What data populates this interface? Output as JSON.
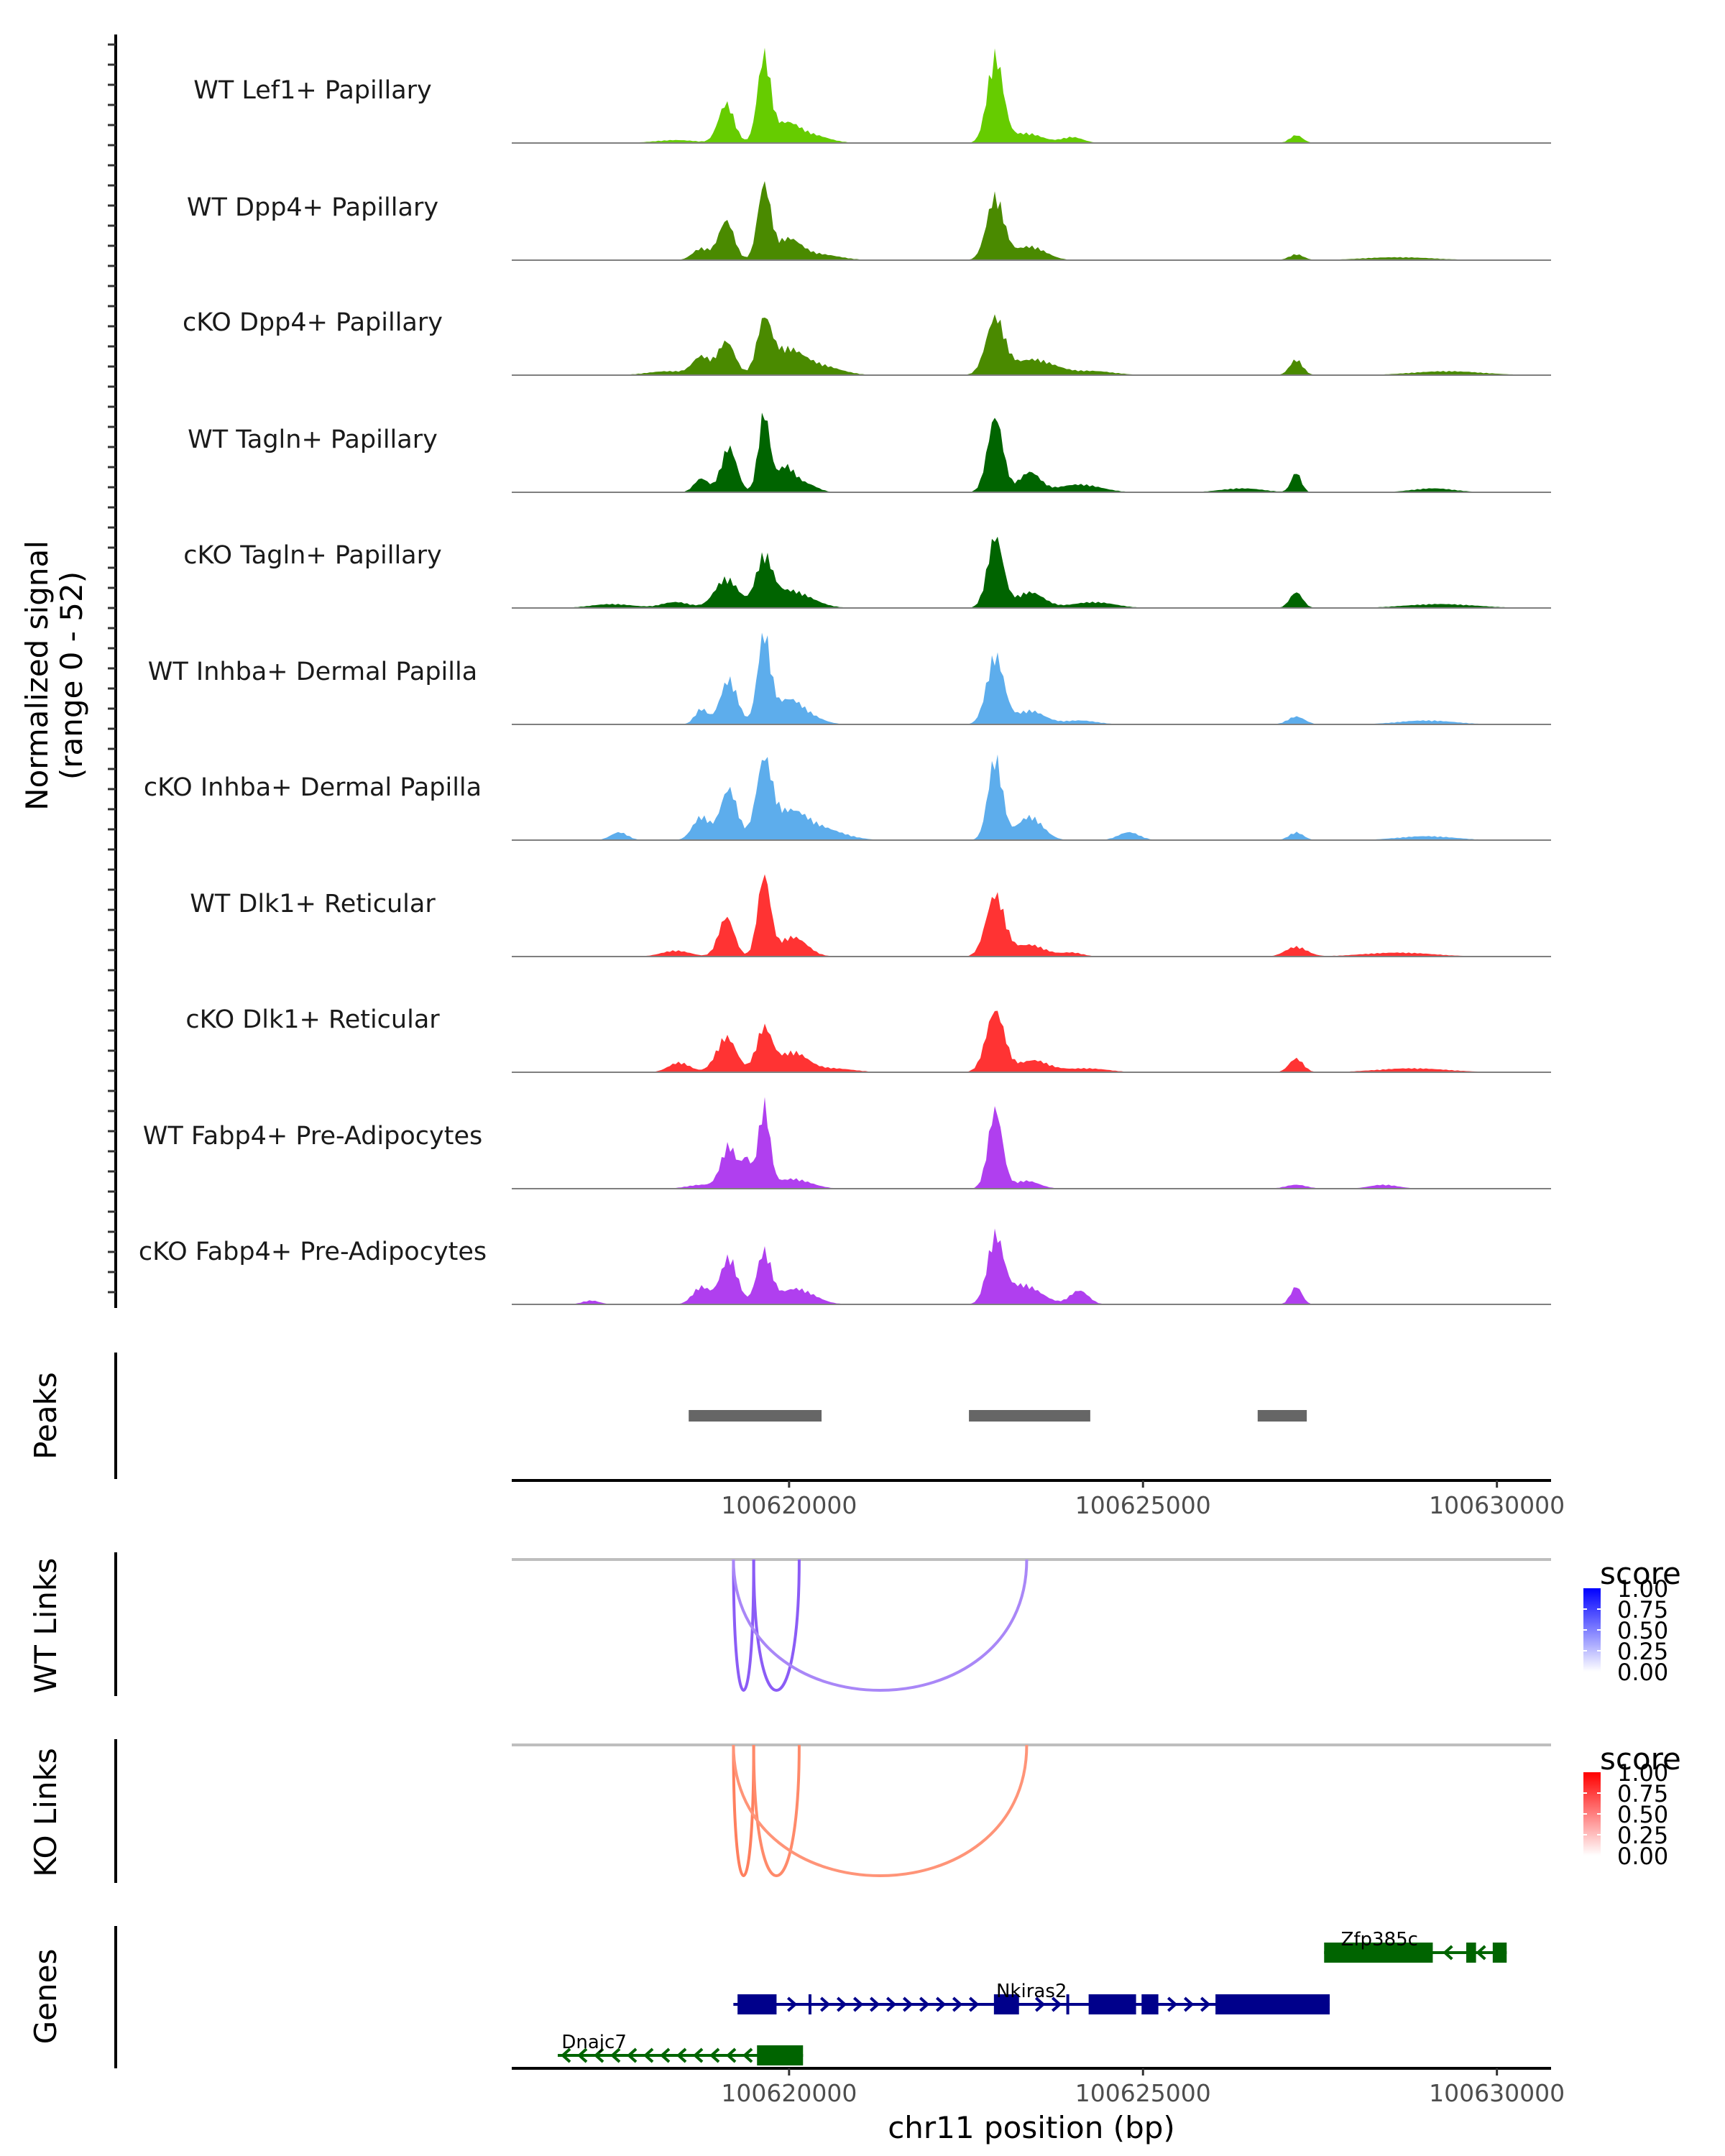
{
  "chart_data": {
    "type": "area",
    "title": "",
    "xlabel": "chr11 position (bp)",
    "ylabel": "Normalized signal\n(range 0 - 52)",
    "ylabel_lines": [
      "Normalized signal",
      "(range 0 - 52)"
    ],
    "chromosome": "chr11",
    "xlim": [
      100616082,
      100630765
    ],
    "ylim": [
      0,
      52
    ],
    "x_ticks": [
      100620000,
      100625000,
      100630000
    ],
    "x_tick_labels": [
      "100620000",
      "100625000",
      "100630000"
    ],
    "coverage_tracks": [
      {
        "name": "WT Lef1+ Papillary",
        "color": "#66CC00",
        "peaks": [
          [
            100619114,
            20,
            110
          ],
          [
            100619646,
            43,
            90
          ],
          [
            100619950,
            9,
            180
          ],
          [
            100620300,
            4,
            250
          ],
          [
            100622913,
            44,
            110
          ],
          [
            100623350,
            5,
            220
          ],
          [
            100624000,
            3,
            150
          ],
          [
            100627165,
            4,
            90
          ],
          [
            100618400,
            1.5,
            300
          ]
        ]
      },
      {
        "name": "WT Dpp4+ Papillary",
        "color": "#4A8A00",
        "peaks": [
          [
            100618760,
            6,
            120
          ],
          [
            100619114,
            20,
            110
          ],
          [
            100619646,
            37,
            90
          ],
          [
            100619980,
            10,
            180
          ],
          [
            100620400,
            3,
            300
          ],
          [
            100622913,
            32,
            120
          ],
          [
            100623400,
            7,
            220
          ],
          [
            100627165,
            3,
            100
          ],
          [
            100628600,
            1.5,
            500
          ]
        ]
      },
      {
        "name": "cKO Dpp4+ Papillary",
        "color": "#4A8A00",
        "peaks": [
          [
            100618300,
            2,
            300
          ],
          [
            100618760,
            9,
            120
          ],
          [
            100619114,
            17,
            120
          ],
          [
            100619646,
            25,
            100
          ],
          [
            100619950,
            12,
            220
          ],
          [
            100620400,
            5,
            300
          ],
          [
            100622913,
            28,
            130
          ],
          [
            100623450,
            8,
            300
          ],
          [
            100624300,
            2,
            300
          ],
          [
            100627165,
            8,
            90
          ],
          [
            100629300,
            2,
            500
          ]
        ]
      },
      {
        "name": "WT Tagln+ Papillary",
        "color": "#006400",
        "peaks": [
          [
            100618760,
            7,
            100
          ],
          [
            100619150,
            23,
            110
          ],
          [
            100619646,
            40,
            80
          ],
          [
            100619950,
            13,
            130
          ],
          [
            100620250,
            4,
            150
          ],
          [
            100622913,
            38,
            110
          ],
          [
            100623400,
            10,
            150
          ],
          [
            100624100,
            4,
            300
          ],
          [
            100627165,
            10,
            70
          ],
          [
            100626400,
            2,
            300
          ],
          [
            100629100,
            2,
            300
          ]
        ]
      },
      {
        "name": "cKO Tagln+ Papillary",
        "color": "#006400",
        "peaks": [
          [
            100618400,
            3,
            200
          ],
          [
            100619114,
            15,
            160
          ],
          [
            100619646,
            23,
            110
          ],
          [
            100620000,
            9,
            300
          ],
          [
            100622913,
            36,
            110
          ],
          [
            100623400,
            8,
            200
          ],
          [
            100624300,
            3,
            300
          ],
          [
            100627165,
            8,
            90
          ],
          [
            100629200,
            2,
            500
          ],
          [
            100617500,
            2,
            300
          ]
        ]
      },
      {
        "name": "WT Inhba+ Dermal Papilla",
        "color": "#5DADEC",
        "peaks": [
          [
            100618760,
            8,
            90
          ],
          [
            100619150,
            23,
            120
          ],
          [
            100619646,
            44,
            90
          ],
          [
            100619980,
            12,
            200
          ],
          [
            100620300,
            3,
            200
          ],
          [
            100622913,
            35,
            120
          ],
          [
            100623400,
            7,
            200
          ],
          [
            100624100,
            2,
            250
          ],
          [
            100627165,
            4,
            120
          ],
          [
            100629000,
            2,
            400
          ]
        ]
      },
      {
        "name": "cKO Inhba+ Dermal Papilla",
        "color": "#5DADEC",
        "peaks": [
          [
            100617600,
            4,
            120
          ],
          [
            100618760,
            12,
            120
          ],
          [
            100619150,
            26,
            120
          ],
          [
            100619646,
            37,
            110
          ],
          [
            100620000,
            14,
            250
          ],
          [
            100620500,
            5,
            300
          ],
          [
            100622913,
            42,
            100
          ],
          [
            100623400,
            12,
            180
          ],
          [
            100624800,
            4,
            150
          ],
          [
            100627165,
            4,
            100
          ],
          [
            100629000,
            2,
            400
          ]
        ]
      },
      {
        "name": "WT Dlk1+ Reticular",
        "color": "#FF3333",
        "peaks": [
          [
            100618400,
            3,
            200
          ],
          [
            100619114,
            20,
            110
          ],
          [
            100619646,
            40,
            90
          ],
          [
            100620050,
            10,
            200
          ],
          [
            100622913,
            31,
            130
          ],
          [
            100623400,
            6,
            220
          ],
          [
            100624000,
            2,
            150
          ],
          [
            100627165,
            5,
            150
          ],
          [
            100628600,
            2,
            500
          ]
        ]
      },
      {
        "name": "cKO Dlk1+ Reticular",
        "color": "#FF3333",
        "peaks": [
          [
            100618450,
            5,
            150
          ],
          [
            100619114,
            18,
            140
          ],
          [
            100619646,
            22,
            110
          ],
          [
            100620050,
            10,
            200
          ],
          [
            100620600,
            2,
            300
          ],
          [
            100622913,
            31,
            130
          ],
          [
            100623450,
            6,
            220
          ],
          [
            100624200,
            2,
            300
          ],
          [
            100627165,
            7,
            100
          ],
          [
            100628800,
            2,
            500
          ]
        ]
      },
      {
        "name": "WT Fabp4+ Pre-Adipocytes",
        "color": "#B03FEF",
        "peaks": [
          [
            100618760,
            2,
            200
          ],
          [
            100619150,
            22,
            110
          ],
          [
            100619400,
            14,
            70
          ],
          [
            100619646,
            42,
            80
          ],
          [
            100620050,
            5,
            250
          ],
          [
            100622913,
            40,
            100
          ],
          [
            100623350,
            4,
            180
          ],
          [
            100627165,
            2,
            150
          ],
          [
            100628400,
            2,
            200
          ]
        ]
      },
      {
        "name": "cKO Fabp4+ Pre-Adipocytes",
        "color": "#B03FEF",
        "peaks": [
          [
            100618760,
            9,
            120
          ],
          [
            100619150,
            24,
            120
          ],
          [
            100619646,
            26,
            100
          ],
          [
            100620100,
            8,
            250
          ],
          [
            100622913,
            33,
            110
          ],
          [
            100623300,
            10,
            250
          ],
          [
            100624100,
            7,
            130
          ],
          [
            100627165,
            9,
            80
          ],
          [
            100617200,
            2,
            120
          ]
        ]
      }
    ],
    "peaks_track": {
      "label": "Peaks",
      "color": "#666666",
      "regions": [
        [
          100618582,
          100620459
        ],
        [
          100622541,
          100624255
        ],
        [
          100626620,
          100627314
        ]
      ]
    },
    "link_tracks": [
      {
        "label": "WT Links",
        "legend_title": "score",
        "scale_low": "#FFFFFF",
        "scale_high": "#0000FF",
        "links": [
          {
            "start": 100619214,
            "end": 100619500,
            "score": 0.62,
            "color": "#8B5CF6"
          },
          {
            "start": 100619500,
            "end": 100620143,
            "score": 0.62,
            "color": "#8B5CF6"
          },
          {
            "start": 100619214,
            "end": 100623357,
            "score": 0.48,
            "color": "#A987F7"
          }
        ]
      },
      {
        "label": "KO Links",
        "legend_title": "score",
        "scale_low": "#FFFFFF",
        "scale_high": "#FF0000",
        "links": [
          {
            "start": 100619214,
            "end": 100619500,
            "score": 0.55,
            "color": "#FF7F5E"
          },
          {
            "start": 100619500,
            "end": 100620143,
            "score": 0.52,
            "color": "#FF8A6A"
          },
          {
            "start": 100619214,
            "end": 100623357,
            "score": 0.45,
            "color": "#FF9478"
          }
        ]
      }
    ],
    "legend_ticks": [
      "1.00",
      "0.75",
      "0.50",
      "0.25",
      "0.00"
    ],
    "genes_track": {
      "label": "Genes",
      "genes": [
        {
          "name": "Zfp385c",
          "strand": "-",
          "color": "#006400",
          "row": 0,
          "start": 100627559,
          "end": 100630138,
          "exons": [
            [
              100627559,
              100629094
            ],
            [
              100629567,
              100629705
            ],
            [
              100629941,
              100630138
            ]
          ]
        },
        {
          "name": "Nkiras2",
          "strand": "+",
          "color": "#00008B",
          "row": 1,
          "start": 100619213,
          "end": 100627638,
          "exons": [
            [
              100619272,
              100619823
            ],
            [
              100620275,
              100620315
            ],
            [
              100622894,
              100623248
            ],
            [
              100623917,
              100623957
            ],
            [
              100624232,
              100624902
            ],
            [
              100624980,
              100625217
            ],
            [
              100626024,
              100627638
            ]
          ]
        },
        {
          "name": "Dnajc7",
          "strand": "-",
          "color": "#006400",
          "row": 2,
          "start": 100616732,
          "end": 100620197,
          "exons": [
            [
              100619547,
              100620197
            ]
          ]
        }
      ]
    }
  }
}
